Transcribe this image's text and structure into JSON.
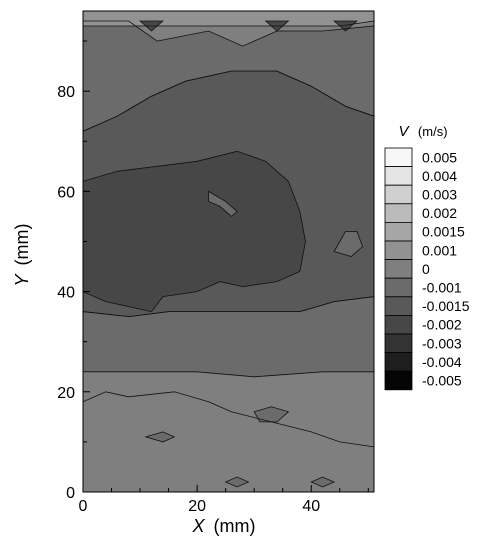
{
  "chart_data": {
    "type": "heatmap",
    "title": "",
    "xlabel": {
      "var": "X",
      "unit": "(mm)"
    },
    "ylabel": {
      "var": "Y",
      "unit": "(mm)"
    },
    "xlim": [
      0,
      51
    ],
    "ylim": [
      0,
      96
    ],
    "xticks": [
      0,
      20,
      40
    ],
    "yticks": [
      0,
      20,
      40,
      60,
      80
    ],
    "legend": {
      "placement": "right",
      "title_var": "V",
      "title_unit": "(m/s)",
      "levels": [
        {
          "label": "0.005",
          "color": "#f7f7f7"
        },
        {
          "label": "0.004",
          "color": "#e4e4e4"
        },
        {
          "label": "0.003",
          "color": "#d0d0d0"
        },
        {
          "label": "0.002",
          "color": "#bbbbbb"
        },
        {
          "label": "0.0015",
          "color": "#a6a6a6"
        },
        {
          "label": "0.001",
          "color": "#929292"
        },
        {
          "label": "0",
          "color": "#7f7f7f"
        },
        {
          "label": "-0.001",
          "color": "#6b6b6b"
        },
        {
          "label": "-0.0015",
          "color": "#595959"
        },
        {
          "label": "-0.002",
          "color": "#474747"
        },
        {
          "label": "-0.003",
          "color": "#333333"
        },
        {
          "label": "-0.004",
          "color": "#1e1e1e"
        },
        {
          "label": "-0.005",
          "color": "#050505"
        }
      ]
    },
    "regions": [
      {
        "level": "0",
        "points": [
          [
            0,
            0
          ],
          [
            51,
            0
          ],
          [
            51,
            96
          ],
          [
            0,
            96
          ]
        ]
      },
      {
        "level": "-0.001",
        "points": [
          [
            0,
            94
          ],
          [
            8,
            94
          ],
          [
            13,
            90
          ],
          [
            22,
            92
          ],
          [
            28,
            89
          ],
          [
            34,
            92
          ],
          [
            42,
            92
          ],
          [
            51,
            93
          ],
          [
            51,
            75
          ],
          [
            46,
            77
          ],
          [
            40,
            81
          ],
          [
            34,
            84
          ],
          [
            26,
            84
          ],
          [
            18,
            82
          ],
          [
            12,
            79
          ],
          [
            6,
            75
          ],
          [
            0,
            72
          ]
        ]
      },
      {
        "level": "-0.001",
        "points": [
          [
            0,
            24
          ],
          [
            10,
            24
          ],
          [
            20,
            24
          ],
          [
            30,
            23
          ],
          [
            42,
            24
          ],
          [
            51,
            24
          ],
          [
            51,
            39
          ],
          [
            44,
            38
          ],
          [
            38,
            36
          ],
          [
            30,
            36
          ],
          [
            22,
            36
          ],
          [
            15,
            36
          ],
          [
            8,
            35
          ],
          [
            0,
            36
          ]
        ]
      },
      {
        "level": "-0.0015",
        "points": [
          [
            0,
            72
          ],
          [
            6,
            75
          ],
          [
            12,
            79
          ],
          [
            18,
            82
          ],
          [
            26,
            84
          ],
          [
            34,
            84
          ],
          [
            40,
            81
          ],
          [
            46,
            77
          ],
          [
            51,
            75
          ],
          [
            51,
            39
          ],
          [
            44,
            38
          ],
          [
            38,
            36
          ],
          [
            30,
            36
          ],
          [
            22,
            36
          ],
          [
            15,
            36
          ],
          [
            8,
            35
          ],
          [
            0,
            36
          ]
        ]
      },
      {
        "level": "-0.002",
        "points": [
          [
            0,
            62
          ],
          [
            6,
            64
          ],
          [
            13,
            65
          ],
          [
            20,
            66
          ],
          [
            27,
            68
          ],
          [
            32,
            66
          ],
          [
            36,
            62
          ],
          [
            38,
            56
          ],
          [
            39,
            50
          ],
          [
            38,
            44
          ],
          [
            34,
            42
          ],
          [
            28,
            41
          ],
          [
            24,
            42
          ],
          [
            20,
            40
          ],
          [
            14,
            39
          ],
          [
            12,
            36
          ],
          [
            8,
            37
          ],
          [
            4,
            38
          ],
          [
            0,
            40
          ]
        ]
      },
      {
        "level": "-0.001",
        "points": [
          [
            22,
            60
          ],
          [
            25,
            58
          ],
          [
            27,
            56
          ],
          [
            26,
            55
          ],
          [
            24,
            57
          ],
          [
            22,
            58
          ]
        ]
      },
      {
        "level": "-0.001",
        "points": [
          [
            44,
            48
          ],
          [
            47,
            47
          ],
          [
            49,
            49
          ],
          [
            48,
            52
          ],
          [
            46,
            52
          ],
          [
            45,
            50
          ]
        ]
      },
      {
        "level": "0",
        "points": [
          [
            0,
            18
          ],
          [
            4,
            20
          ],
          [
            8,
            19
          ],
          [
            16,
            20
          ],
          [
            22,
            18
          ],
          [
            26,
            16
          ],
          [
            33,
            14
          ],
          [
            40,
            12
          ],
          [
            45,
            10
          ],
          [
            51,
            9
          ],
          [
            51,
            0
          ],
          [
            0,
            0
          ]
        ]
      },
      {
        "level": "-0.001",
        "points": [
          [
            30,
            16
          ],
          [
            33,
            17
          ],
          [
            36,
            16
          ],
          [
            34,
            14
          ],
          [
            31,
            14
          ]
        ]
      },
      {
        "level": "-0.001",
        "points": [
          [
            11,
            11
          ],
          [
            14,
            12
          ],
          [
            16,
            11
          ],
          [
            14,
            10
          ]
        ]
      },
      {
        "level": "0.001",
        "points": [
          [
            0,
            93
          ],
          [
            5,
            93
          ],
          [
            10,
            93
          ],
          [
            15,
            93
          ],
          [
            20,
            93
          ],
          [
            25,
            93
          ],
          [
            30,
            93
          ],
          [
            35,
            93
          ],
          [
            40,
            93
          ],
          [
            45,
            93
          ],
          [
            51,
            94
          ],
          [
            51,
            96
          ],
          [
            0,
            96
          ]
        ]
      },
      {
        "level": "-0.002",
        "points": [
          [
            10,
            94
          ],
          [
            12,
            92
          ],
          [
            14,
            94
          ]
        ]
      },
      {
        "level": "-0.002",
        "points": [
          [
            32,
            94
          ],
          [
            34,
            92
          ],
          [
            36,
            94
          ]
        ]
      },
      {
        "level": "-0.002",
        "points": [
          [
            44,
            94
          ],
          [
            46,
            92
          ],
          [
            48,
            94
          ]
        ]
      },
      {
        "level": "-0.001",
        "points": [
          [
            40,
            2
          ],
          [
            42,
            3
          ],
          [
            44,
            2
          ],
          [
            42,
            1
          ]
        ]
      },
      {
        "level": "-0.001",
        "points": [
          [
            25,
            2
          ],
          [
            27,
            3
          ],
          [
            29,
            2
          ],
          [
            27,
            1
          ]
        ]
      }
    ]
  }
}
